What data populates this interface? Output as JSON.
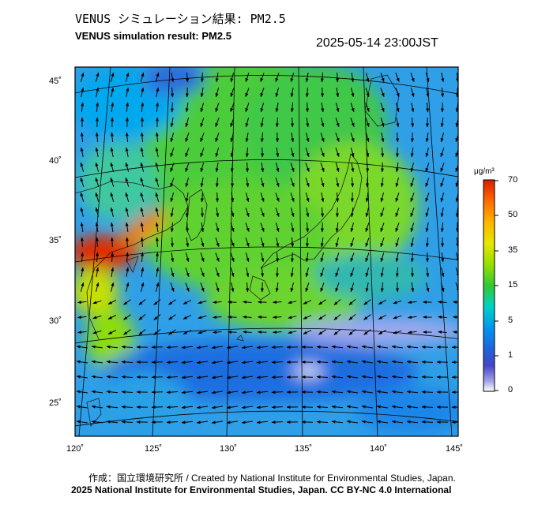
{
  "title_jp": "VENUS シミュレーション結果: PM2.5",
  "title_en": "VENUS simulation result: PM2.5",
  "timestamp": "2025-05-14 23:00JST",
  "latitude_labels": [
    "45˚",
    "40˚",
    "35˚",
    "30˚",
    "25˚"
  ],
  "longitude_labels": [
    "120˚",
    "125˚",
    "130˚",
    "135˚",
    "140˚",
    "145˚"
  ],
  "colorbar": {
    "unit": "μg/m³",
    "ticks": [
      "70",
      "50",
      "35",
      "15",
      "5",
      "1",
      "0"
    ],
    "colors": [
      "#e62000",
      "#ff8a00",
      "#ffd400",
      "#dff200",
      "#8ee000",
      "#2ec830",
      "#00d6b0",
      "#00b8f0",
      "#1a6ee6",
      "#3c3cd0",
      "#8080e0",
      "#c8c8f0",
      "#ffffff"
    ]
  },
  "credits": {
    "line1": "作成：国立環境研究所 / Created by National Institute for Environmental Studies, Japan.",
    "line2": "2025 National Institute for Environmental Studies, Japan. CC BY-NC 4.0 International"
  }
}
